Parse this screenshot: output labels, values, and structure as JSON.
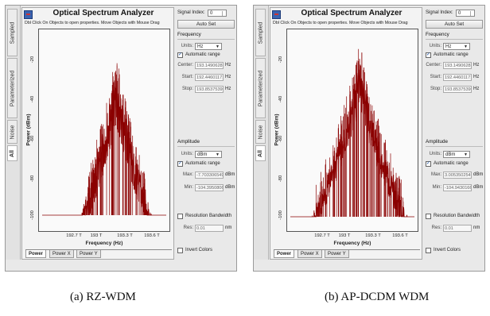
{
  "panels": [
    {
      "caption": "(a)  RZ-WDM",
      "window_title": "Optical Spectrum Analyzer",
      "subtitle": "Dbl Click On Objects to open properties.  Move Objects with Mouse Drag",
      "side_tabs": [
        "Sampled",
        "Parameterized",
        "Noise",
        "All"
      ],
      "active_side_tab": "All",
      "bottom_tabs": [
        "Power",
        "Power X",
        "Power Y"
      ],
      "plot": {
        "ylabel": "Power (dBm)",
        "xlabel": "Frequency (Hz)",
        "yticks": [
          "-20",
          "-40",
          "-60",
          "-80",
          "-100"
        ],
        "xticks": [
          "192.7 T",
          "193 T",
          "193.3 T",
          "193.6 T"
        ]
      },
      "controls": {
        "signal_index_label": "Signal Index:",
        "signal_index": "0",
        "auto_set": "Auto Set",
        "frequency_heading": "Frequency",
        "units_label": "Units:",
        "freq_units": "Hz",
        "auto_range": "Automatic range",
        "center_label": "Center:",
        "center": "193.14906281",
        "start_label": "Start:",
        "start": "192.44601171",
        "stop_label": "Stop:",
        "stop": "193.85375390",
        "hz": "Hz",
        "amplitude_heading": "Amplitude",
        "amp_units": "dBm",
        "max_label": "Max:",
        "max": "-7.703306549",
        "min_label": "Min:",
        "min": "-104.3950806",
        "dbm": "dBm",
        "res_bw": "Resolution Bandwidth",
        "res_label": "Res:",
        "res": "0.01",
        "nm": "nm",
        "invert": "Invert Colors"
      }
    },
    {
      "caption": "(b) AP-DCDM WDM",
      "window_title": "Optical Spectrum Analyzer",
      "subtitle": "Dbl Click On Objects to open properties.  Move Objects with Mouse Drag",
      "side_tabs": [
        "Sampled",
        "Parameterized",
        "Noise",
        "All"
      ],
      "active_side_tab": "All",
      "bottom_tabs": [
        "Power",
        "Power X",
        "Power Y"
      ],
      "plot": {
        "ylabel": "Power (dBm)",
        "xlabel": "Frequency (Hz)",
        "yticks": [
          "-20",
          "-40",
          "-60",
          "-80",
          "-100"
        ],
        "xticks": [
          "192.7 T",
          "193 T",
          "193.3 T",
          "193.6 T"
        ]
      },
      "controls": {
        "signal_index_label": "Signal Index:",
        "signal_index": "0",
        "auto_set": "Auto Set",
        "frequency_heading": "Frequency",
        "units_label": "Units:",
        "freq_units": "Hz",
        "auto_range": "Automatic range",
        "center_label": "Center:",
        "center": "193.14906281",
        "start_label": "Start:",
        "start": "192.44601171",
        "stop_label": "Stop:",
        "stop": "193.85375390",
        "hz": "Hz",
        "amplitude_heading": "Amplitude",
        "amp_units": "dBm",
        "max_label": "Max:",
        "max": "3.0053502549",
        "min_label": "Min:",
        "min": "-104.9430166",
        "dbm": "dBm",
        "res_bw": "Resolution Bandwidth",
        "res_label": "Res:",
        "res": "0.01",
        "nm": "nm",
        "invert": "Invert Colors"
      }
    }
  ],
  "colors": {
    "trace": "#8b0000",
    "plot_bg": "#fafafa",
    "window_bg": "#e9e9e9"
  }
}
